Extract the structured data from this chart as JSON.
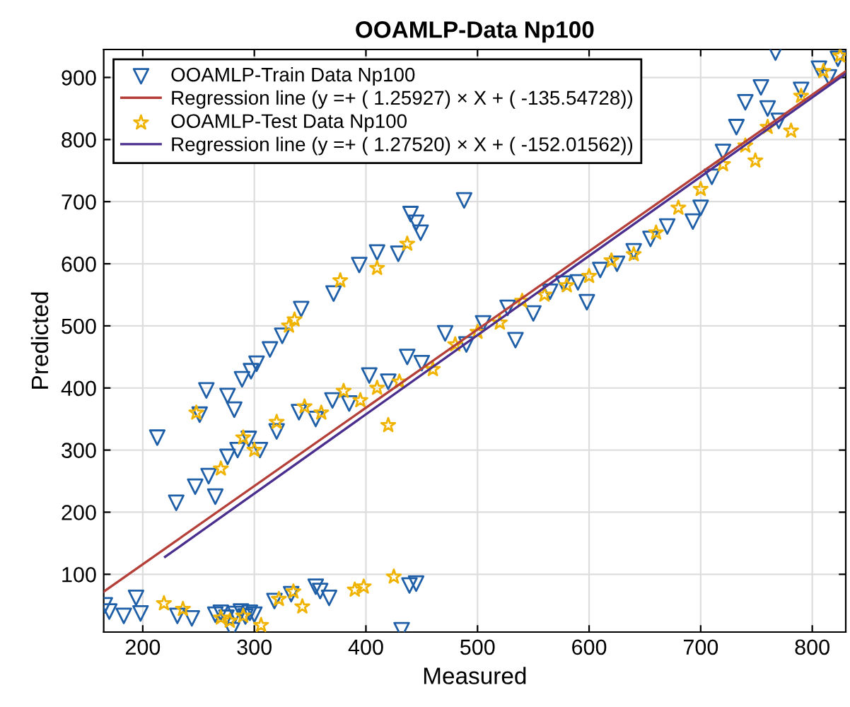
{
  "chart_data": {
    "type": "scatter",
    "title": "OOAMLP-Data Np100",
    "xlabel": "Measured",
    "ylabel": "Predicted",
    "xlim": [
      165,
      830
    ],
    "ylim": [
      7,
      945
    ],
    "xticks": [
      200,
      300,
      400,
      500,
      600,
      700,
      800
    ],
    "yticks": [
      100,
      200,
      300,
      400,
      500,
      600,
      700,
      800,
      900
    ],
    "grid": true,
    "legend": "top left",
    "series": [
      {
        "name": "OOAMLP-Train Data Np100",
        "marker": "triangle",
        "color": "#1f5fa8",
        "x": [
          166,
          170,
          183,
          194,
          198,
          231,
          244,
          265,
          270,
          275,
          280,
          283,
          288,
          292,
          296,
          300,
          318,
          333,
          359,
          367,
          355,
          432,
          439,
          445,
          213,
          230,
          251,
          257,
          276,
          282,
          289,
          297,
          302,
          314,
          325,
          342,
          371,
          394,
          410,
          429,
          445,
          449,
          440,
          488,
          767,
          247,
          259,
          265,
          276,
          285,
          295,
          305,
          320,
          340,
          355,
          370,
          385,
          403,
          420,
          437,
          450,
          471,
          490,
          505,
          527,
          534,
          550,
          565,
          577,
          590,
          598,
          610,
          625,
          640,
          655,
          670,
          693,
          700,
          710,
          720,
          732,
          740,
          754,
          760,
          770,
          790,
          806,
          823,
          815
        ],
        "values": [
          50,
          40,
          33,
          62,
          37,
          33,
          29,
          35,
          38,
          30,
          10,
          36,
          40,
          32,
          38,
          35,
          57,
          68,
          73,
          62,
          80,
          10,
          82,
          85,
          320,
          215,
          357,
          396,
          387,
          365,
          414,
          427,
          439,
          462,
          484,
          527,
          552,
          598,
          618,
          616,
          666,
          650,
          680,
          702,
          940,
          241,
          258,
          225,
          289,
          300,
          318,
          300,
          330,
          361,
          350,
          380,
          375,
          420,
          410,
          450,
          440,
          488,
          470,
          504,
          529,
          477,
          520,
          555,
          568,
          570,
          538,
          590,
          600,
          620,
          640,
          660,
          668,
          690,
          740,
          780,
          820,
          860,
          884,
          850,
          830,
          880,
          914,
          930,
          900
        ]
      },
      {
        "name": "Regression line (y =+ ( 1.25927) × X + ( -135.54728))",
        "type": "line",
        "line_style": "solid",
        "color": "#b5403a",
        "x": [
          165,
          830
        ],
        "values": [
          72,
          910
        ]
      },
      {
        "name": "OOAMLP-Test Data Np100",
        "marker": "star",
        "color": "#f0b400",
        "x": [
          219,
          236,
          270,
          278,
          290,
          306,
          322,
          343,
          335,
          398,
          390,
          425,
          248,
          331,
          336,
          377,
          410,
          437,
          270,
          290,
          300,
          320,
          345,
          360,
          380,
          395,
          410,
          420,
          430,
          460,
          480,
          500,
          520,
          540,
          560,
          580,
          600,
          620,
          640,
          660,
          680,
          700,
          720,
          740,
          749,
          760,
          781,
          790,
          810,
          825
        ],
        "values": [
          53,
          44,
          30,
          25,
          33,
          18,
          60,
          48,
          72,
          80,
          75,
          96,
          360,
          500,
          510,
          573,
          593,
          632,
          270,
          320,
          300,
          345,
          370,
          360,
          395,
          380,
          400,
          340,
          410,
          430,
          470,
          490,
          505,
          540,
          550,
          565,
          580,
          605,
          615,
          650,
          690,
          720,
          760,
          790,
          766,
          820,
          814,
          870,
          910,
          935
        ]
      },
      {
        "name": "Regression line (y =+ ( 1.27520) × X + ( -152.01562))",
        "type": "line",
        "line_style": "solid",
        "color": "#4b2f8f",
        "x": [
          220,
          830
        ],
        "values": [
          128,
          906
        ]
      }
    ]
  }
}
